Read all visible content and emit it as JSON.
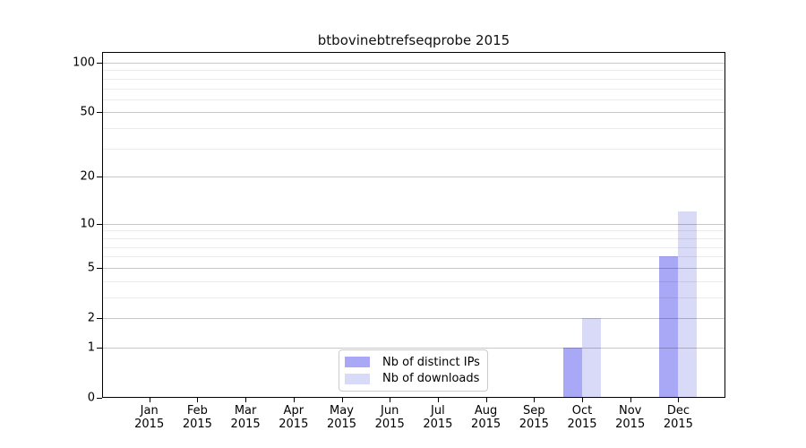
{
  "chart_data": {
    "type": "bar",
    "title": "btbovinebtrefseqprobe 2015",
    "categories": [
      "Jan",
      "Feb",
      "Mar",
      "Apr",
      "May",
      "Jun",
      "Jul",
      "Aug",
      "Sep",
      "Oct",
      "Nov",
      "Dec"
    ],
    "category_year": "2015",
    "series": [
      {
        "name": "Nb of distinct IPs",
        "color": "#a8a8f7",
        "values": [
          0,
          0,
          0,
          0,
          0,
          0,
          0,
          0,
          0,
          1,
          0,
          6
        ]
      },
      {
        "name": "Nb of downloads",
        "color": "#d9d9f8",
        "values": [
          0,
          0,
          0,
          0,
          0,
          0,
          0,
          0,
          0,
          2,
          0,
          12
        ]
      }
    ],
    "yscale": "log1p",
    "ylim": [
      0,
      116
    ],
    "y_major_ticks": [
      0,
      1,
      2,
      5,
      10,
      20,
      50,
      100
    ],
    "y_minor_ticks": [
      3,
      4,
      6,
      7,
      8,
      9,
      30,
      40,
      60,
      70,
      80,
      90
    ],
    "xlabel": "",
    "ylabel": "",
    "grid": "horizontal",
    "legend_position": "lower-center-inside",
    "colors": {
      "major_grid": "#c7c7c7",
      "minor_grid": "#ebebeb",
      "spine": "#000000",
      "background": "#ffffff"
    }
  }
}
